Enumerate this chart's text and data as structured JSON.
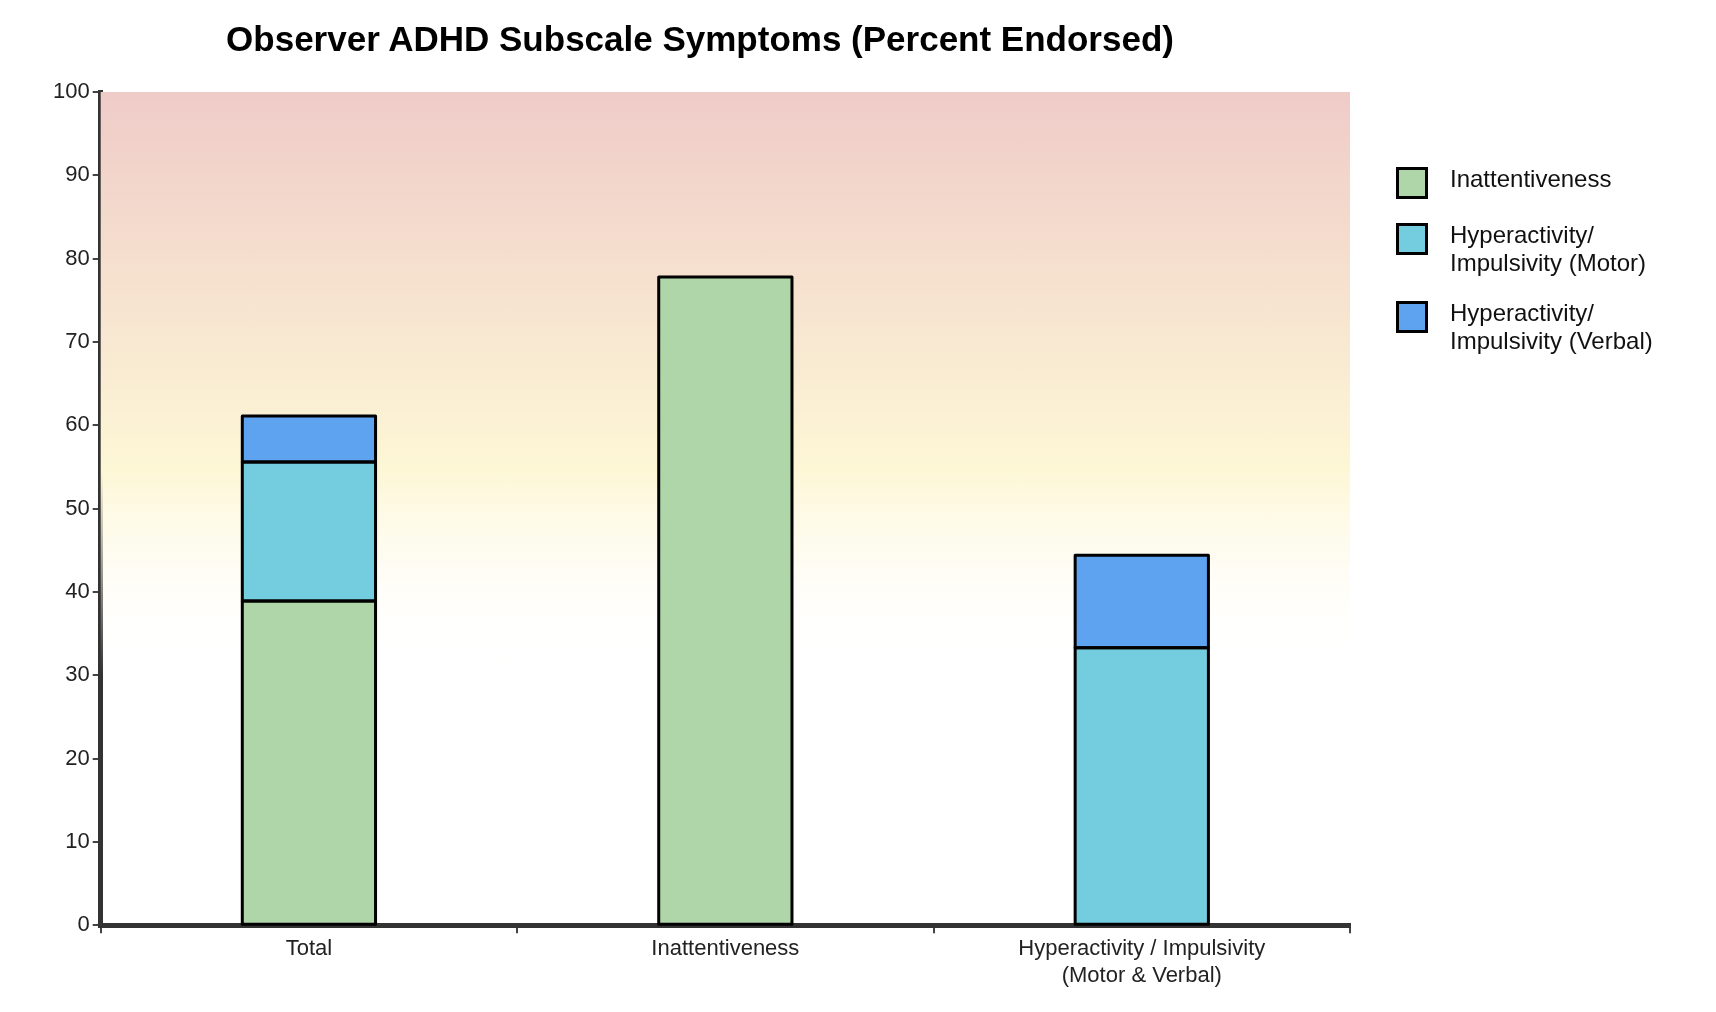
{
  "chart_data": {
    "type": "bar",
    "title": "Observer ADHD Subscale Symptoms (Percent Endorsed)",
    "categories": [
      "Total",
      "Inattentiveness",
      "Hyperactivity / Impulsivity (Motor & Verbal)"
    ],
    "series": [
      {
        "name": "Inattentiveness",
        "color": "#afd6a8",
        "values": [
          38.9,
          77.8,
          null
        ]
      },
      {
        "name": "Hyperactivity/ Impulsivity (Motor)",
        "color": "#74ccdf",
        "values": [
          16.7,
          null,
          33.3
        ]
      },
      {
        "name": "Hyperactivity/ Impulsivity (Verbal)",
        "color": "#5ea3ef",
        "values": [
          5.5,
          null,
          11.1
        ]
      }
    ],
    "stacked": true,
    "ylim": [
      0,
      100
    ],
    "yticks": [
      0,
      10,
      20,
      30,
      40,
      50,
      60,
      70,
      80,
      90,
      100
    ],
    "bands": [
      {
        "axis": "y",
        "from": 30,
        "to": 100,
        "color": "#efcbc8"
      }
    ],
    "grid": false,
    "legend": "right"
  }
}
